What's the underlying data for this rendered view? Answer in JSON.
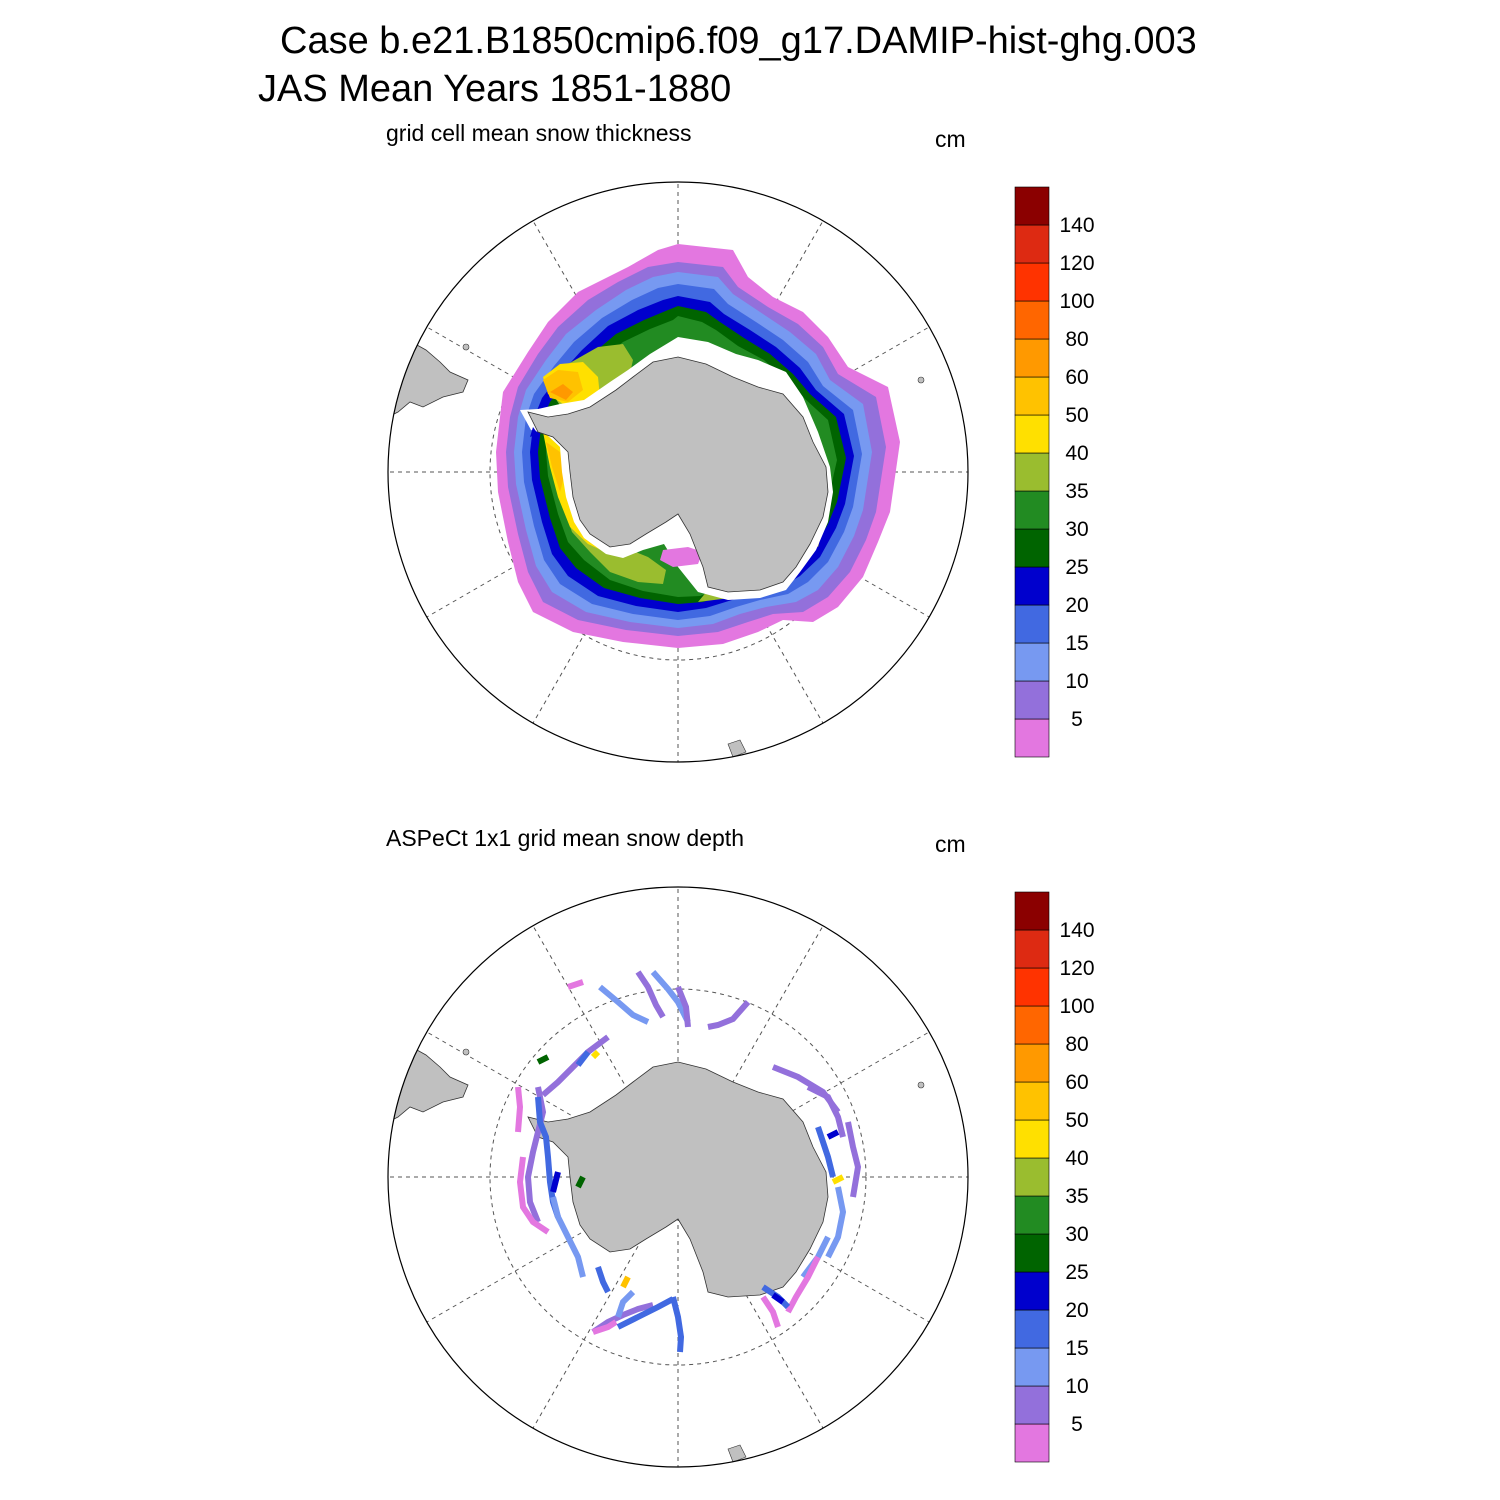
{
  "title": {
    "line1": "Case b.e21.B1850cmip6.f09_g17.DAMIP-hist-ghg.003",
    "line2": "JAS Mean   Years 1851-1880"
  },
  "panels": [
    {
      "id": "model",
      "subtitle": "grid cell mean snow thickness",
      "units": "cm"
    },
    {
      "id": "obs",
      "subtitle": "ASPeCt 1x1 grid mean snow depth",
      "units": "cm"
    }
  ],
  "colorbar": {
    "labels": [
      "5",
      "10",
      "15",
      "20",
      "25",
      "30",
      "35",
      "40",
      "50",
      "60",
      "80",
      "100",
      "120",
      "140"
    ],
    "colors": [
      "#E377E0",
      "#9370DB",
      "#7799F1",
      "#4169E1",
      "#0000CD",
      "#006400",
      "#228B22",
      "#9ABD2F",
      "#FFE000",
      "#FFC200",
      "#FF9900",
      "#FF6600",
      "#FF3300",
      "#DD2A12",
      "#8B0000"
    ]
  },
  "colors": {
    "land": "#C0C0C0",
    "grid": "#555555"
  }
}
